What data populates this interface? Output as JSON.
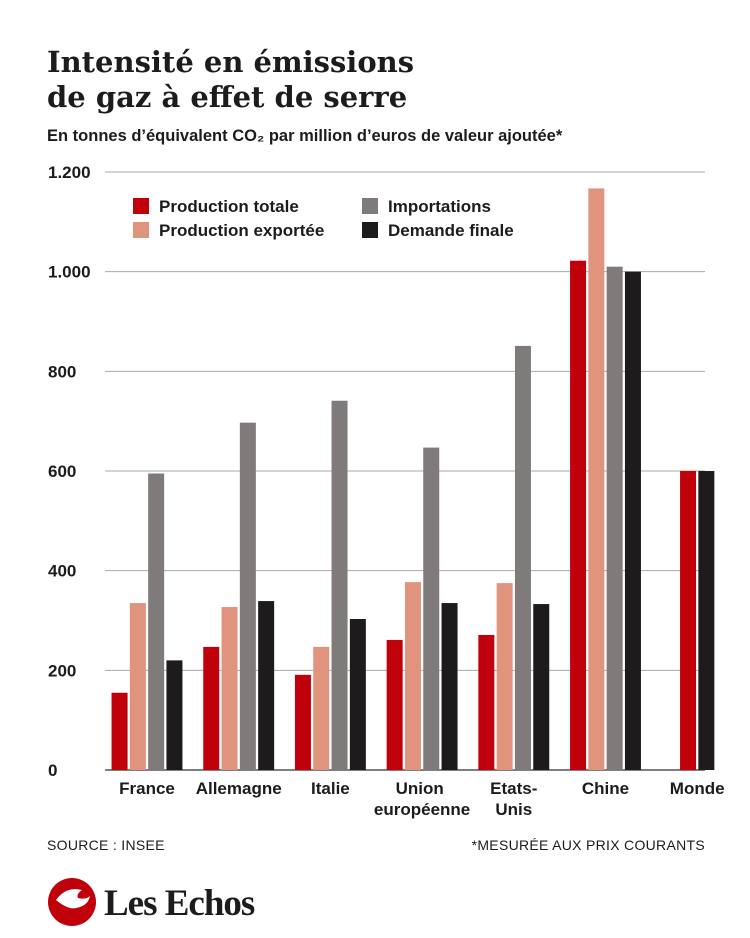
{
  "chart_data": {
    "type": "bar",
    "title": [
      "Intensité en émissions",
      "de gaz à effet de serre"
    ],
    "subtitle": "En tonnes d’équivalent CO₂ par million d’euros de valeur ajoutée*",
    "categories": [
      "France",
      "Allemagne",
      "Italie",
      "Union européenne",
      "Etats-Unis",
      "Chine",
      "Monde"
    ],
    "series": [
      {
        "name": "Production totale",
        "color": "#c0000b",
        "values": [
          155,
          247,
          191,
          261,
          271,
          1022,
          600
        ]
      },
      {
        "name": "Production exportée",
        "color": "#e0937d",
        "values": [
          335,
          327,
          247,
          377,
          375,
          1167,
          null
        ]
      },
      {
        "name": "Importations",
        "color": "#7f7b7b",
        "values": [
          595,
          697,
          741,
          647,
          851,
          1010,
          null
        ]
      },
      {
        "name": "Demande finale",
        "color": "#1d1b1b",
        "values": [
          220,
          339,
          303,
          335,
          333,
          1000,
          600
        ]
      }
    ],
    "ylim": [
      0,
      1200
    ],
    "yticks": [
      0,
      200,
      400,
      600,
      800,
      {
        "value": 1000,
        "label": "1.000"
      },
      {
        "value": 1200,
        "label": "1.200"
      }
    ],
    "grid": true,
    "legend": "top-left",
    "source": "SOURCE : INSEE",
    "note": "*MESURÉE AUX PRIX COURANTS",
    "brand": "Les Echos"
  }
}
